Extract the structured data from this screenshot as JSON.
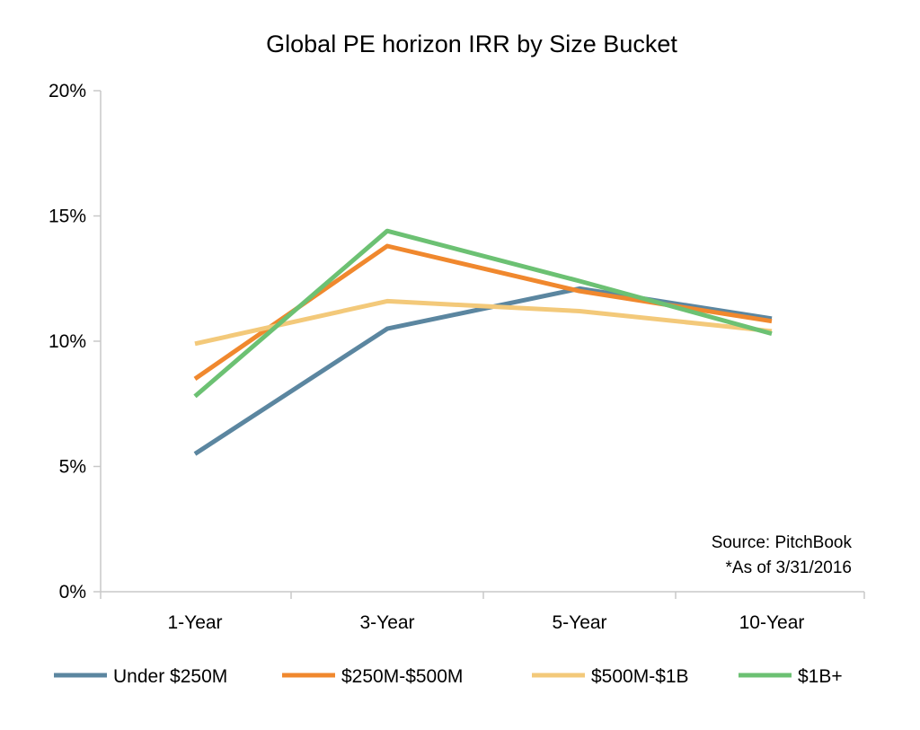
{
  "chart_data": {
    "type": "line",
    "title": "Global PE horizon IRR by Size Bucket",
    "categories": [
      "1-Year",
      "3-Year",
      "5-Year",
      "10-Year"
    ],
    "y_ticks": [
      "0%",
      "5%",
      "10%",
      "15%",
      "20%"
    ],
    "ylim": [
      0,
      20
    ],
    "y_unit": "%",
    "grid": false,
    "legend_position": "bottom",
    "series": [
      {
        "name": "Under $250M",
        "color": "#5b86a0",
        "values": [
          5.5,
          10.5,
          12.1,
          10.9
        ]
      },
      {
        "name": "$250M-$500M",
        "color": "#f0882e",
        "values": [
          8.5,
          13.8,
          12.0,
          10.8
        ]
      },
      {
        "name": "$500M-$1B",
        "color": "#f3c97a",
        "values": [
          9.9,
          11.6,
          11.2,
          10.4
        ]
      },
      {
        "name": "$1B+",
        "color": "#6cc173",
        "values": [
          7.8,
          14.4,
          12.4,
          10.3
        ]
      }
    ],
    "annotations": [
      "Source: PitchBook",
      "*As of 3/31/2016"
    ]
  }
}
